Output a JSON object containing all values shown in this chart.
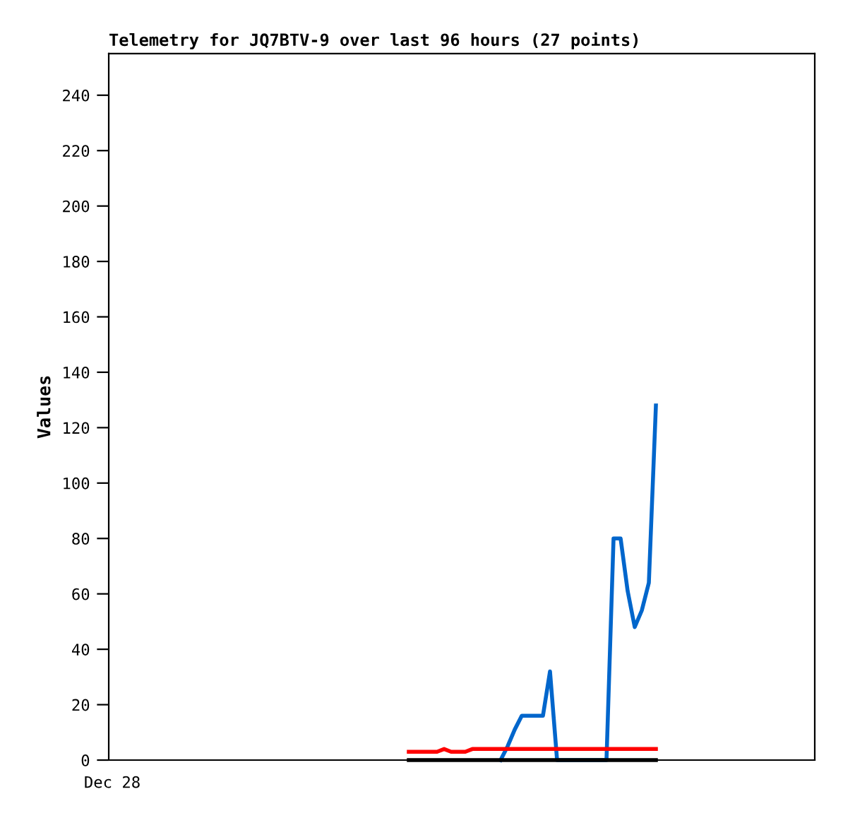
{
  "chart_data": {
    "type": "line",
    "title": "Telemetry for JQ7BTV-9 over last 96 hours (27 points)",
    "ylabel": "Values",
    "categories": [
      "Dec 28",
      null,
      null,
      null,
      null,
      null,
      null,
      null,
      null,
      null,
      null,
      null,
      null,
      null,
      null,
      null,
      null,
      null,
      null,
      null,
      null,
      null,
      null,
      null,
      null,
      null,
      null,
      null,
      null,
      null,
      null,
      null,
      null,
      null,
      null,
      null,
      null,
      null,
      null,
      null,
      null,
      null,
      null,
      null,
      null,
      null,
      null,
      null,
      null,
      null,
      null,
      null,
      null,
      null,
      null,
      null,
      null,
      null,
      null,
      null,
      null,
      null,
      null,
      null,
      null,
      null,
      null,
      null,
      null,
      null,
      null,
      null,
      null,
      null,
      null,
      null,
      null,
      null,
      null,
      null,
      null,
      null,
      null,
      null,
      null,
      null,
      null,
      null,
      null,
      null,
      null,
      null,
      null,
      null,
      null,
      null,
      null,
      null,
      null,
      null
    ],
    "ylim": [
      0,
      255
    ],
    "yticks": [
      0,
      20,
      40,
      60,
      80,
      100,
      120,
      140,
      160,
      180,
      200,
      220,
      240
    ],
    "grid": false,
    "marker": "none",
    "line_style": "solid",
    "series": [
      {
        "color": "#0066cc",
        "values": [
          null,
          null,
          null,
          null,
          null,
          null,
          null,
          null,
          null,
          null,
          null,
          null,
          null,
          null,
          null,
          null,
          null,
          null,
          null,
          null,
          null,
          null,
          null,
          null,
          null,
          null,
          null,
          null,
          null,
          null,
          null,
          null,
          null,
          null,
          null,
          null,
          null,
          null,
          null,
          null,
          null,
          null,
          null,
          null,
          null,
          null,
          null,
          null,
          null,
          null,
          null,
          null,
          null,
          null,
          null,
          0,
          5,
          11,
          16,
          16,
          16,
          16,
          32,
          0,
          0,
          0,
          0,
          0,
          0,
          0,
          0,
          80,
          80,
          61,
          48,
          54,
          64,
          128,
          null,
          null,
          null,
          null,
          null,
          null,
          null,
          null,
          null,
          null,
          null,
          null,
          null,
          null,
          null,
          null,
          null,
          null,
          null,
          null,
          null,
          null
        ]
      },
      {
        "color": "#ff0000",
        "values": [
          null,
          null,
          null,
          null,
          null,
          null,
          null,
          null,
          null,
          null,
          null,
          null,
          null,
          null,
          null,
          null,
          null,
          null,
          null,
          null,
          null,
          null,
          null,
          null,
          null,
          null,
          null,
          null,
          null,
          null,
          null,
          null,
          null,
          null,
          null,
          null,
          null,
          null,
          null,
          null,
          null,
          null,
          3,
          3,
          3,
          3,
          3,
          4,
          3,
          3,
          3,
          4,
          4,
          4,
          4,
          4,
          4,
          4,
          4,
          4,
          4,
          4,
          4,
          4,
          4,
          4,
          4,
          4,
          4,
          4,
          4,
          4,
          4,
          4,
          4,
          4,
          4,
          4,
          null,
          null,
          null,
          null,
          null,
          null,
          null,
          null,
          null,
          null,
          null,
          null,
          null,
          null,
          null,
          null,
          null,
          null,
          null,
          null,
          null,
          null
        ]
      },
      {
        "color": "#000000",
        "values": [
          null,
          null,
          null,
          null,
          null,
          null,
          null,
          null,
          null,
          null,
          null,
          null,
          null,
          null,
          null,
          null,
          null,
          null,
          null,
          null,
          null,
          null,
          null,
          null,
          null,
          null,
          null,
          null,
          null,
          null,
          null,
          null,
          null,
          null,
          null,
          null,
          null,
          null,
          null,
          null,
          null,
          null,
          0,
          0,
          0,
          0,
          0,
          0,
          0,
          0,
          0,
          0,
          0,
          0,
          0,
          0,
          0,
          0,
          0,
          0,
          0,
          0,
          0,
          0,
          0,
          0,
          0,
          0,
          0,
          0,
          0,
          0,
          0,
          0,
          0,
          0,
          0,
          0,
          null,
          null,
          null,
          null,
          null,
          null,
          null,
          null,
          null,
          null,
          null,
          null,
          null,
          null,
          null,
          null,
          null,
          null,
          null,
          null,
          null,
          null
        ]
      }
    ]
  }
}
